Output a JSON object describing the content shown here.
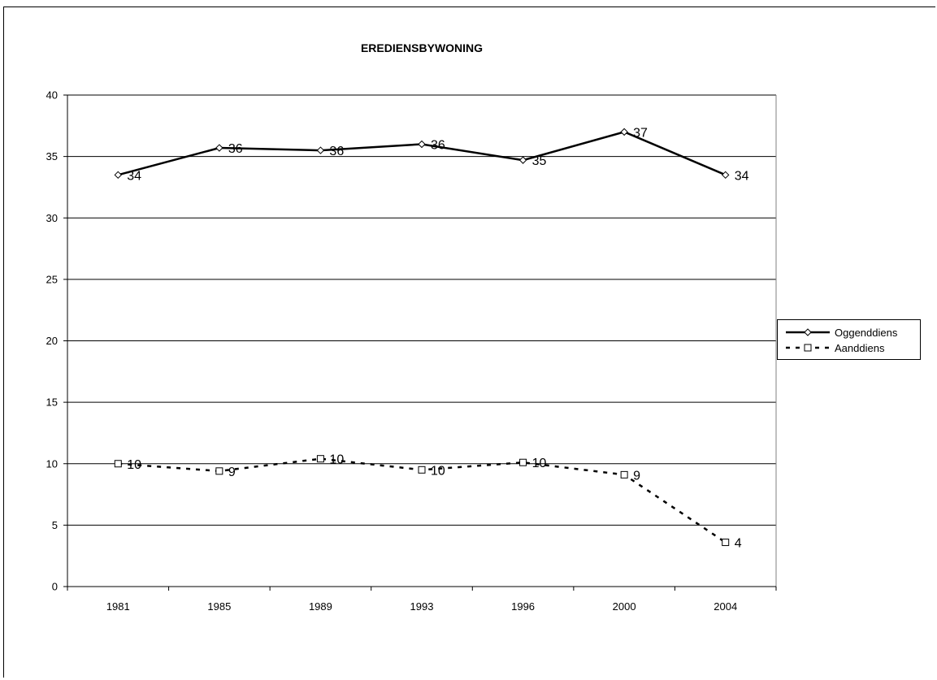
{
  "chart_data": {
    "type": "line",
    "title": "EREDIENSBYWONING",
    "xlabel": "",
    "ylabel": "",
    "categories": [
      "1981",
      "1985",
      "1989",
      "1993",
      "1996",
      "2000",
      "2004"
    ],
    "ylim": [
      0,
      40
    ],
    "yticks": [
      0,
      5,
      10,
      15,
      20,
      25,
      30,
      35,
      40
    ],
    "grid": true,
    "legend_position": "right",
    "series": [
      {
        "name": "Oggenddiens",
        "values": [
          33.5,
          35.7,
          35.5,
          36.0,
          34.7,
          37.0,
          33.5
        ],
        "labels": [
          "34",
          "36",
          "36",
          "36",
          "35",
          "37",
          "34"
        ],
        "marker": "diamond",
        "style": "solid",
        "color": "#000000"
      },
      {
        "name": "Aanddiens",
        "values": [
          10.0,
          9.4,
          10.4,
          9.5,
          10.1,
          9.1,
          3.6
        ],
        "labels": [
          "10",
          "9",
          "10",
          "10",
          "10",
          "9",
          "4"
        ],
        "marker": "square",
        "style": "dashed",
        "color": "#000000"
      }
    ]
  }
}
